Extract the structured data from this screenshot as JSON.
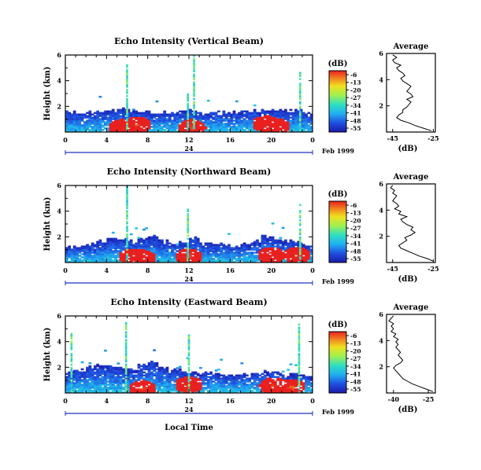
{
  "figure": {
    "colorbar_unit": "(dB)",
    "colorbar_ticks": [
      "-6",
      "-13",
      "-20",
      "-27",
      "-34",
      "-41",
      "-48",
      "-55"
    ],
    "date_label": "Feb 1999",
    "day_label": "24",
    "xlabel": "Local Time",
    "ylabel": "Height (km)",
    "average_title": "Average",
    "average_xlabel": "(dB)"
  },
  "chart_data": [
    {
      "type": "heatmap",
      "title": "Echo Intensity (Vertical Beam)",
      "xlabel": "Local Time",
      "ylabel": "Height (km)",
      "x_ticks": [
        "0",
        "4",
        "8",
        "12",
        "16",
        "20",
        "0"
      ],
      "xlim": [
        0,
        24
      ],
      "y_ticks": [
        "2",
        "4",
        "6"
      ],
      "ylim": [
        0,
        6
      ],
      "colorbar": {
        "unit": "(dB)",
        "range": [
          -55,
          -6
        ]
      },
      "top_km": [
        1.5,
        1.5,
        1.5,
        1.6,
        1.6,
        1.7,
        1.6,
        1.5,
        1.5,
        1.5,
        1.5,
        1.6,
        1.6,
        1.5,
        1.5,
        1.5,
        1.5,
        1.6,
        1.6,
        1.7,
        1.7,
        1.6,
        1.6,
        1.5
      ],
      "hot_spots": [
        {
          "time": 5.5,
          "height": 0.3,
          "value": -8
        },
        {
          "time": 7.0,
          "height": 0.5,
          "value": -10
        },
        {
          "time": 12.3,
          "height": 0.3,
          "value": -12
        },
        {
          "time": 19.5,
          "height": 0.6,
          "value": -8
        },
        {
          "time": 20.5,
          "height": 0.4,
          "value": -10
        }
      ],
      "spikes": [
        {
          "time": 5.9,
          "top": 5.2
        },
        {
          "time": 12.4,
          "top": 6.0
        },
        {
          "time": 11.8,
          "top": 3.0
        },
        {
          "time": 22.7,
          "top": 4.6
        }
      ]
    },
    {
      "type": "line",
      "title": "Average",
      "xlabel": "(dB)",
      "ylabel": "Height (km)",
      "x_ticks": [
        "-45",
        "-25"
      ],
      "xlim": [
        -48,
        -24
      ],
      "y_ticks": [
        "2",
        "4",
        "6"
      ],
      "ylim": [
        0,
        6
      ],
      "height": [
        0.1,
        0.3,
        0.5,
        0.7,
        0.9,
        1.1,
        1.3,
        1.5,
        1.7,
        1.9,
        2.1,
        2.3,
        2.5,
        2.7,
        2.9,
        3.1,
        3.3,
        3.5,
        3.7,
        3.9,
        4.1,
        4.3,
        4.5,
        4.7,
        4.9,
        5.1,
        5.3,
        5.5,
        5.7,
        5.9
      ],
      "value": [
        -26,
        -30,
        -34,
        -37,
        -41,
        -43,
        -42,
        -40,
        -40,
        -38,
        -37,
        -36,
        -38,
        -35,
        -36,
        -38,
        -37,
        -36,
        -38,
        -40,
        -41,
        -39,
        -40,
        -42,
        -43,
        -41,
        -44,
        -45,
        -43,
        -45
      ]
    },
    {
      "type": "heatmap",
      "title": "Echo Intensity (Northward Beam)",
      "xlabel": "Local Time",
      "ylabel": "Height (km)",
      "x_ticks": [
        "0",
        "4",
        "8",
        "12",
        "16",
        "20",
        "0"
      ],
      "xlim": [
        0,
        24
      ],
      "y_ticks": [
        "2",
        "4",
        "6"
      ],
      "ylim": [
        0,
        6
      ],
      "colorbar": {
        "unit": "(dB)",
        "range": [
          -55,
          -6
        ]
      },
      "top_km": [
        1.2,
        1.3,
        1.4,
        1.6,
        1.8,
        1.7,
        1.6,
        1.8,
        2.0,
        1.6,
        1.4,
        1.5,
        1.8,
        1.4,
        1.5,
        1.4,
        1.3,
        1.4,
        1.6,
        2.0,
        1.8,
        1.6,
        1.5,
        1.3
      ],
      "hot_spots": [
        {
          "time": 6.5,
          "height": 0.4,
          "value": -10
        },
        {
          "time": 7.5,
          "height": 0.3,
          "value": -8
        },
        {
          "time": 12.0,
          "height": 0.4,
          "value": -12
        },
        {
          "time": 20.0,
          "height": 0.5,
          "value": -6
        },
        {
          "time": 22.5,
          "height": 0.5,
          "value": -10
        }
      ],
      "spikes": [
        {
          "time": 5.9,
          "top": 6.0
        },
        {
          "time": 11.8,
          "top": 4.2
        },
        {
          "time": 22.7,
          "top": 4.5
        }
      ]
    },
    {
      "type": "line",
      "title": "Average",
      "xlabel": "(dB)",
      "ylabel": "Height (km)",
      "x_ticks": [
        "-45",
        "-25"
      ],
      "xlim": [
        -48,
        -24
      ],
      "y_ticks": [
        "2",
        "4",
        "6"
      ],
      "ylim": [
        0,
        6
      ],
      "height": [
        0.1,
        0.3,
        0.5,
        0.7,
        0.9,
        1.1,
        1.3,
        1.5,
        1.7,
        1.9,
        2.1,
        2.3,
        2.5,
        2.7,
        2.9,
        3.1,
        3.3,
        3.5,
        3.7,
        3.9,
        4.1,
        4.3,
        4.5,
        4.7,
        4.9,
        5.1,
        5.3,
        5.5,
        5.7,
        5.9
      ],
      "value": [
        -25,
        -28,
        -32,
        -35,
        -38,
        -41,
        -42,
        -40,
        -38,
        -39,
        -36,
        -34,
        -36,
        -35,
        -38,
        -40,
        -41,
        -38,
        -42,
        -41,
        -44,
        -42,
        -43,
        -45,
        -44,
        -43,
        -45,
        -44,
        -46,
        -45
      ]
    },
    {
      "type": "heatmap",
      "title": "Echo Intensity (Eastward Beam)",
      "xlabel": "Local Time",
      "ylabel": "Height (km)",
      "x_ticks": [
        "0",
        "4",
        "8",
        "12",
        "16",
        "20",
        "0"
      ],
      "xlim": [
        0,
        24
      ],
      "y_ticks": [
        "2",
        "4",
        "6"
      ],
      "ylim": [
        0,
        6
      ],
      "colorbar": {
        "unit": "(dB)",
        "range": [
          -55,
          -6
        ]
      },
      "top_km": [
        1.6,
        1.8,
        2.0,
        2.1,
        2.0,
        1.9,
        1.8,
        2.2,
        2.4,
        2.0,
        1.8,
        1.7,
        1.6,
        1.5,
        1.6,
        1.4,
        1.3,
        1.4,
        1.5,
        1.6,
        1.5,
        1.4,
        1.4,
        1.3
      ],
      "hot_spots": [
        {
          "time": 7.5,
          "height": 0.3,
          "value": -12
        },
        {
          "time": 12.0,
          "height": 0.6,
          "value": -8
        },
        {
          "time": 20.2,
          "height": 0.5,
          "value": -10
        },
        {
          "time": 22.0,
          "height": 0.4,
          "value": -12
        }
      ],
      "spikes": [
        {
          "time": 5.8,
          "top": 5.5
        },
        {
          "time": 11.9,
          "top": 4.5
        },
        {
          "time": 22.6,
          "top": 5.3
        },
        {
          "time": 0.5,
          "top": 4.8
        }
      ]
    },
    {
      "type": "line",
      "title": "Average",
      "xlabel": "(dB)",
      "ylabel": "Height (km)",
      "x_ticks": [
        "-40",
        "-25"
      ],
      "xlim": [
        -43,
        -22
      ],
      "y_ticks": [
        "2",
        "4",
        "6"
      ],
      "ylim": [
        0,
        6
      ],
      "height": [
        0.1,
        0.3,
        0.5,
        0.7,
        0.9,
        1.1,
        1.3,
        1.5,
        1.7,
        1.9,
        2.1,
        2.3,
        2.5,
        2.7,
        2.9,
        3.1,
        3.3,
        3.5,
        3.7,
        3.9,
        4.1,
        4.3,
        4.5,
        4.7,
        4.9,
        5.1,
        5.3,
        5.5,
        5.7,
        5.9
      ],
      "value": [
        -23,
        -26,
        -29,
        -32,
        -34,
        -36,
        -37,
        -38,
        -39,
        -40,
        -39,
        -37,
        -36,
        -37,
        -38,
        -37,
        -38,
        -39,
        -38,
        -39,
        -38,
        -40,
        -39,
        -41,
        -40,
        -41,
        -40,
        -42,
        -41,
        -40
      ]
    }
  ]
}
